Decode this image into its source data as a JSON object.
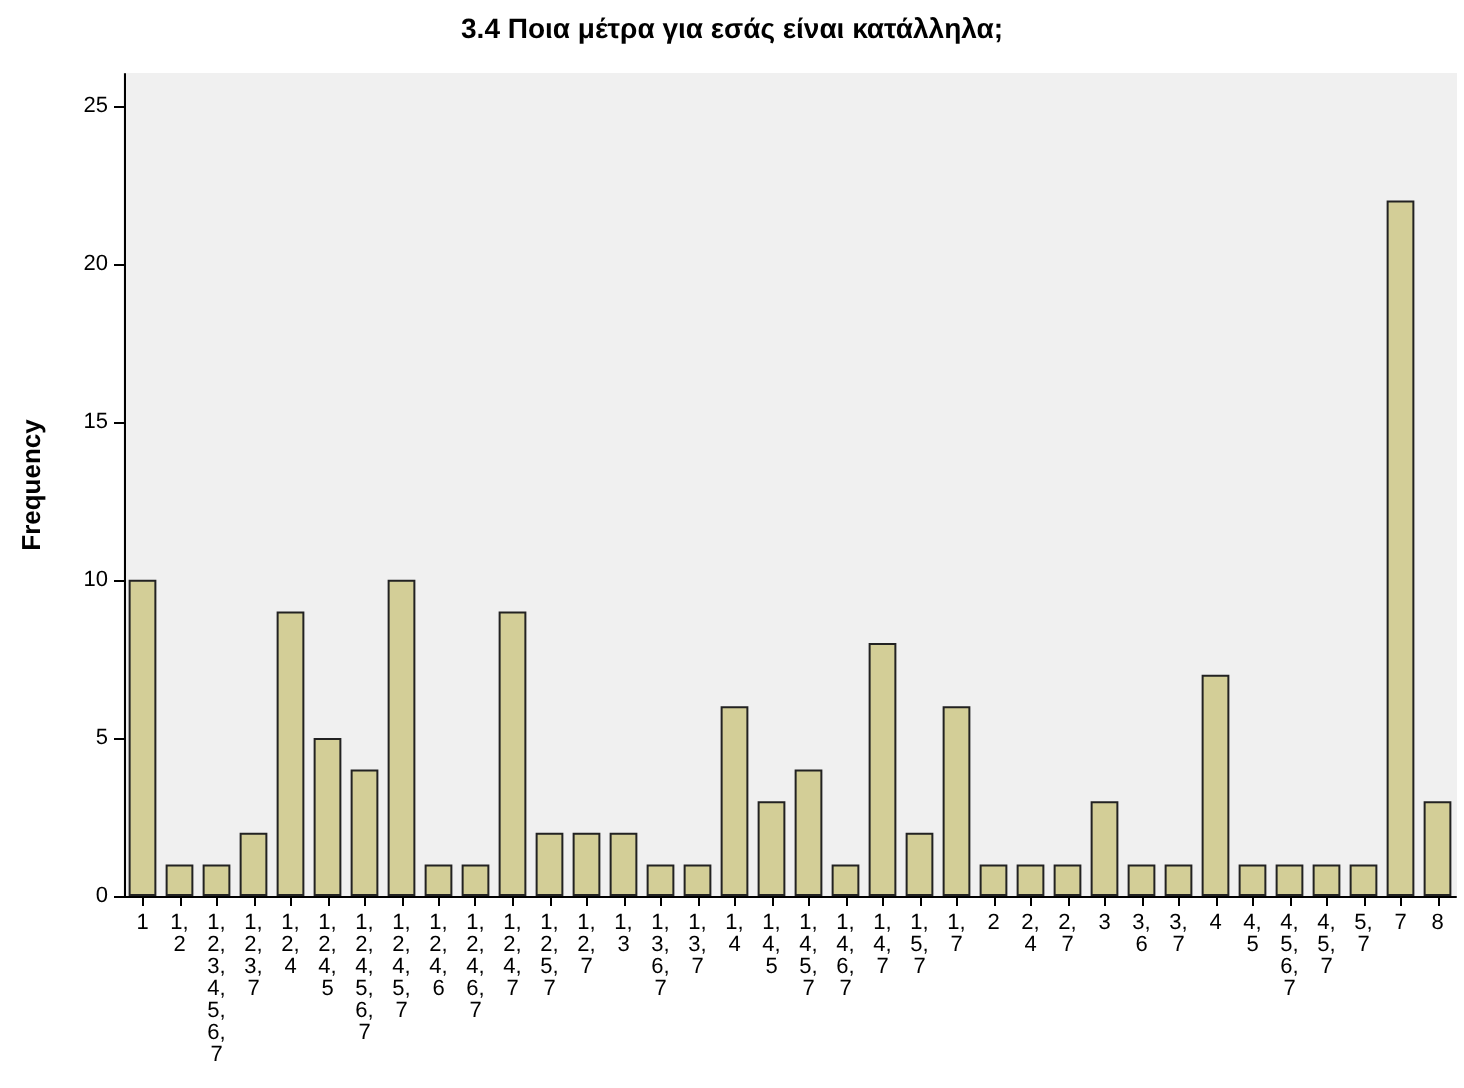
{
  "chart_data": {
    "type": "bar",
    "title": "3.4 Ποια μέτρα για εσάς είναι κατάλληλα;",
    "ylabel": "Frequency",
    "categories": [
      "1",
      "1, 2",
      "1, 2, 3, 4, 5, 6, 7",
      "1, 2, 3, 7",
      "1, 2, 4",
      "1, 2, 4, 5",
      "1, 2, 4, 5, 6, 7",
      "1, 2, 4, 5, 7",
      "1, 2, 4, 6",
      "1, 2, 4, 6, 7",
      "1, 2, 4, 7",
      "1, 2, 5, 7",
      "1, 2, 7",
      "1, 3",
      "1, 3, 6, 7",
      "1, 3, 7",
      "1, 4",
      "1, 4, 5",
      "1, 4, 5, 7",
      "1, 4, 6, 7",
      "1, 4, 7",
      "1, 5, 7",
      "1, 7",
      "2",
      "2, 4",
      "2, 7",
      "3",
      "3, 6",
      "3, 7",
      "4",
      "4, 5",
      "4, 5, 6, 7",
      "4, 5, 7",
      "5, 7",
      "7",
      "8"
    ],
    "values": [
      10,
      1,
      1,
      2,
      9,
      5,
      4,
      10,
      1,
      1,
      9,
      2,
      2,
      2,
      1,
      1,
      6,
      3,
      4,
      1,
      8,
      2,
      6,
      1,
      1,
      1,
      3,
      1,
      1,
      7,
      1,
      1,
      1,
      1,
      22,
      3
    ],
    "color": "#d3ce97",
    "ylim": [
      0,
      26
    ],
    "yticks": [
      0,
      5,
      10,
      15,
      20,
      25
    ],
    "grid": false
  }
}
